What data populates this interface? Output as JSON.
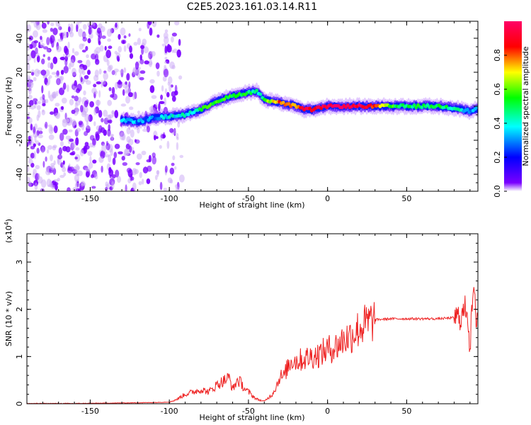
{
  "title": "C2E5.2023.161.03.14.R11",
  "colors": {
    "snr_line": "#ee2222",
    "spectrum_scale": [
      "#ffffff",
      "#7a00ff",
      "#0000ff",
      "#00ffff",
      "#00ff00",
      "#ffff00",
      "#ff0000",
      "#ff0066"
    ]
  },
  "chart_data": [
    {
      "type": "heatmap",
      "title": "C2E5.2023.161.03.14.R11",
      "xlabel": "Height of straight line (km)",
      "ylabel": "Frequency (Hz)",
      "xlim": [
        -190,
        95
      ],
      "ylim": [
        -50,
        50
      ],
      "x_ticks": [
        "-150",
        "-100",
        "-50",
        "0",
        "50"
      ],
      "y_ticks": [
        "-40",
        "-20",
        "0",
        "20",
        "40"
      ],
      "colorbar": {
        "label": "Normalized spectral amplitude",
        "range": [
          0,
          1
        ],
        "ticks": [
          "0.0",
          "0.2",
          "0.4",
          "0.6",
          "0.8"
        ]
      },
      "ridge": {
        "x": [
          -130,
          -120,
          -110,
          -100,
          -90,
          -80,
          -70,
          -60,
          -50,
          -45,
          -40,
          -35,
          -30,
          -25,
          -20,
          -15,
          -10,
          0,
          10,
          20,
          30,
          40,
          50,
          60,
          70,
          80,
          85,
          90,
          95
        ],
        "frequency_hz": [
          -8,
          -9,
          -7,
          -6,
          -5,
          -2,
          3,
          6,
          8,
          9,
          4,
          3,
          2,
          1,
          0,
          -2,
          -2,
          0,
          0,
          0,
          0,
          0,
          0,
          0,
          0,
          -1,
          -2,
          -3,
          -1
        ],
        "amplitude": [
          0.35,
          0.3,
          0.3,
          0.4,
          0.4,
          0.5,
          0.55,
          0.55,
          0.5,
          0.45,
          0.5,
          0.7,
          0.8,
          0.85,
          0.75,
          0.95,
          0.9,
          0.95,
          0.95,
          0.95,
          0.85,
          0.55,
          0.5,
          0.5,
          0.5,
          0.45,
          0.4,
          0.3,
          0.35
        ]
      },
      "noise_region_x": [
        -190,
        -100
      ]
    },
    {
      "type": "line",
      "xlabel": "Height of straight line (km)",
      "ylabel": "SNR (10 * v/v)",
      "y_multiplier": "(x10^4)",
      "xlim": [
        -190,
        95
      ],
      "ylim": [
        0,
        3.6
      ],
      "x_ticks": [
        "-150",
        "-100",
        "-50",
        "0",
        "50"
      ],
      "y_ticks": [
        "0",
        "1",
        "2",
        "3"
      ],
      "series": [
        {
          "x": [
            -190,
            -160,
            -130,
            -110,
            -100,
            -95,
            -90,
            -85,
            -80,
            -75,
            -70,
            -65,
            -62,
            -60,
            -57,
            -55,
            -52,
            -50,
            -45,
            -40,
            -35,
            -32,
            -30,
            -28,
            -25,
            -22,
            -20,
            -15,
            -10,
            -5,
            0,
            5,
            10,
            15,
            20,
            25,
            30,
            40,
            50,
            60,
            70,
            80,
            85,
            88,
            90,
            92,
            94,
            95
          ],
          "y": [
            0.0,
            0.0,
            0.01,
            0.02,
            0.03,
            0.1,
            0.2,
            0.25,
            0.3,
            0.25,
            0.4,
            0.5,
            0.55,
            0.3,
            0.5,
            0.45,
            0.3,
            0.25,
            0.1,
            0.05,
            0.2,
            0.4,
            0.6,
            0.55,
            0.8,
            0.95,
            0.9,
            0.95,
            1.0,
            1.05,
            1.15,
            1.2,
            1.35,
            1.45,
            1.6,
            1.7,
            1.78,
            1.8,
            1.8,
            1.8,
            1.8,
            1.82,
            1.85,
            2.1,
            1.2,
            2.4,
            1.8,
            2.0
          ]
        }
      ]
    }
  ]
}
